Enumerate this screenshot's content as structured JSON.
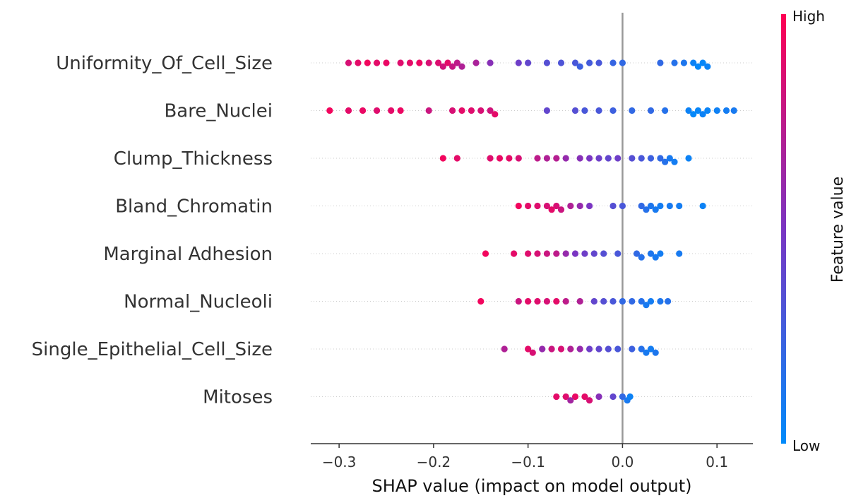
{
  "chart_data": {
    "type": "scatter",
    "subtype": "shap-beeswarm",
    "xlabel": "SHAP value (impact on model output)",
    "xlim": [
      -0.33,
      0.138
    ],
    "xticks": [
      -0.3,
      -0.2,
      -0.1,
      0.0,
      0.1
    ],
    "xtick_labels": [
      "−0.3",
      "−0.2",
      "−0.1",
      "0.0",
      "0.1"
    ],
    "features": [
      "Uniformity_Of_Cell_Size",
      "Bare_Nuclei",
      "Clump_Thickness",
      "Bland_Chromatin",
      "Marginal Adhesion",
      "Normal_Nucleoli",
      "Single_Epithelial_Cell_Size",
      "Mitoses"
    ],
    "colorbar": {
      "label": "Feature value",
      "high_label": "High",
      "low_label": "Low",
      "high_color": "#ff0052",
      "low_color": "#008bfb"
    },
    "series": [
      {
        "values": [
          {
            "x": -0.29,
            "v": 0.85
          },
          {
            "x": -0.28,
            "v": 0.9
          },
          {
            "x": -0.27,
            "v": 0.95
          },
          {
            "x": -0.26,
            "v": 0.9
          },
          {
            "x": -0.25,
            "v": 0.92
          },
          {
            "x": -0.235,
            "v": 0.88
          },
          {
            "x": -0.225,
            "v": 0.9
          },
          {
            "x": -0.215,
            "v": 0.93
          },
          {
            "x": -0.205,
            "v": 0.85
          },
          {
            "x": -0.195,
            "v": 0.87
          },
          {
            "x": -0.19,
            "v": 0.82
          },
          {
            "x": -0.185,
            "v": 0.9
          },
          {
            "x": -0.18,
            "v": 0.78
          },
          {
            "x": -0.175,
            "v": 0.75
          },
          {
            "x": -0.17,
            "v": 0.7
          },
          {
            "x": -0.155,
            "v": 0.68
          },
          {
            "x": -0.14,
            "v": 0.55
          },
          {
            "x": -0.11,
            "v": 0.45
          },
          {
            "x": -0.1,
            "v": 0.4
          },
          {
            "x": -0.08,
            "v": 0.35
          },
          {
            "x": -0.065,
            "v": 0.32
          },
          {
            "x": -0.05,
            "v": 0.3
          },
          {
            "x": -0.045,
            "v": 0.25
          },
          {
            "x": -0.035,
            "v": 0.28
          },
          {
            "x": -0.025,
            "v": 0.3
          },
          {
            "x": -0.01,
            "v": 0.22
          },
          {
            "x": 0.0,
            "v": 0.2
          },
          {
            "x": 0.04,
            "v": 0.2
          },
          {
            "x": 0.055,
            "v": 0.15
          },
          {
            "x": 0.065,
            "v": 0.12
          },
          {
            "x": 0.075,
            "v": 0.05
          },
          {
            "x": 0.08,
            "v": 0.02
          },
          {
            "x": 0.085,
            "v": 0.03
          },
          {
            "x": 0.09,
            "v": 0.05
          }
        ]
      },
      {
        "values": [
          {
            "x": -0.31,
            "v": 0.95
          },
          {
            "x": -0.29,
            "v": 0.9
          },
          {
            "x": -0.275,
            "v": 0.92
          },
          {
            "x": -0.26,
            "v": 0.88
          },
          {
            "x": -0.245,
            "v": 0.9
          },
          {
            "x": -0.235,
            "v": 0.93
          },
          {
            "x": -0.205,
            "v": 0.8
          },
          {
            "x": -0.18,
            "v": 0.85
          },
          {
            "x": -0.17,
            "v": 0.9
          },
          {
            "x": -0.16,
            "v": 0.88
          },
          {
            "x": -0.15,
            "v": 0.85
          },
          {
            "x": -0.14,
            "v": 0.82
          },
          {
            "x": -0.135,
            "v": 0.9
          },
          {
            "x": -0.08,
            "v": 0.4
          },
          {
            "x": -0.05,
            "v": 0.35
          },
          {
            "x": -0.04,
            "v": 0.3
          },
          {
            "x": -0.025,
            "v": 0.3
          },
          {
            "x": -0.01,
            "v": 0.25
          },
          {
            "x": 0.01,
            "v": 0.2
          },
          {
            "x": 0.03,
            "v": 0.2
          },
          {
            "x": 0.045,
            "v": 0.15
          },
          {
            "x": 0.07,
            "v": 0.05
          },
          {
            "x": 0.075,
            "v": 0.02
          },
          {
            "x": 0.08,
            "v": 0.03
          },
          {
            "x": 0.085,
            "v": 0.05
          },
          {
            "x": 0.09,
            "v": 0.04
          },
          {
            "x": 0.1,
            "v": 0.06
          },
          {
            "x": 0.11,
            "v": 0.08
          },
          {
            "x": 0.118,
            "v": 0.1
          }
        ]
      },
      {
        "values": [
          {
            "x": -0.19,
            "v": 0.95
          },
          {
            "x": -0.175,
            "v": 0.9
          },
          {
            "x": -0.14,
            "v": 0.88
          },
          {
            "x": -0.13,
            "v": 0.92
          },
          {
            "x": -0.12,
            "v": 0.9
          },
          {
            "x": -0.11,
            "v": 0.85
          },
          {
            "x": -0.09,
            "v": 0.75
          },
          {
            "x": -0.08,
            "v": 0.7
          },
          {
            "x": -0.07,
            "v": 0.72
          },
          {
            "x": -0.06,
            "v": 0.6
          },
          {
            "x": -0.045,
            "v": 0.55
          },
          {
            "x": -0.035,
            "v": 0.5
          },
          {
            "x": -0.025,
            "v": 0.45
          },
          {
            "x": -0.015,
            "v": 0.4
          },
          {
            "x": -0.005,
            "v": 0.45
          },
          {
            "x": 0.01,
            "v": 0.35
          },
          {
            "x": 0.02,
            "v": 0.3
          },
          {
            "x": 0.03,
            "v": 0.25
          },
          {
            "x": 0.04,
            "v": 0.2
          },
          {
            "x": 0.045,
            "v": 0.15
          },
          {
            "x": 0.05,
            "v": 0.1
          },
          {
            "x": 0.055,
            "v": 0.08
          },
          {
            "x": 0.07,
            "v": 0.05
          }
        ]
      },
      {
        "values": [
          {
            "x": -0.11,
            "v": 0.95
          },
          {
            "x": -0.1,
            "v": 0.9
          },
          {
            "x": -0.09,
            "v": 0.88
          },
          {
            "x": -0.08,
            "v": 0.85
          },
          {
            "x": -0.075,
            "v": 0.9
          },
          {
            "x": -0.07,
            "v": 0.85
          },
          {
            "x": -0.065,
            "v": 0.8
          },
          {
            "x": -0.055,
            "v": 0.7
          },
          {
            "x": -0.045,
            "v": 0.6
          },
          {
            "x": -0.035,
            "v": 0.5
          },
          {
            "x": -0.01,
            "v": 0.35
          },
          {
            "x": 0.0,
            "v": 0.3
          },
          {
            "x": 0.02,
            "v": 0.2
          },
          {
            "x": 0.025,
            "v": 0.15
          },
          {
            "x": 0.03,
            "v": 0.12
          },
          {
            "x": 0.035,
            "v": 0.1
          },
          {
            "x": 0.04,
            "v": 0.08
          },
          {
            "x": 0.05,
            "v": 0.1
          },
          {
            "x": 0.06,
            "v": 0.08
          },
          {
            "x": 0.085,
            "v": 0.05
          }
        ]
      },
      {
        "values": [
          {
            "x": -0.145,
            "v": 0.95
          },
          {
            "x": -0.115,
            "v": 0.9
          },
          {
            "x": -0.1,
            "v": 0.88
          },
          {
            "x": -0.09,
            "v": 0.85
          },
          {
            "x": -0.08,
            "v": 0.8
          },
          {
            "x": -0.07,
            "v": 0.75
          },
          {
            "x": -0.06,
            "v": 0.6
          },
          {
            "x": -0.05,
            "v": 0.5
          },
          {
            "x": -0.04,
            "v": 0.45
          },
          {
            "x": -0.03,
            "v": 0.4
          },
          {
            "x": -0.02,
            "v": 0.35
          },
          {
            "x": -0.005,
            "v": 0.3
          },
          {
            "x": 0.015,
            "v": 0.2
          },
          {
            "x": 0.02,
            "v": 0.15
          },
          {
            "x": 0.03,
            "v": 0.12
          },
          {
            "x": 0.035,
            "v": 0.1
          },
          {
            "x": 0.04,
            "v": 0.08
          },
          {
            "x": 0.06,
            "v": 0.1
          }
        ]
      },
      {
        "values": [
          {
            "x": -0.15,
            "v": 0.95
          },
          {
            "x": -0.11,
            "v": 0.8
          },
          {
            "x": -0.1,
            "v": 0.9
          },
          {
            "x": -0.09,
            "v": 0.88
          },
          {
            "x": -0.08,
            "v": 0.85
          },
          {
            "x": -0.07,
            "v": 0.9
          },
          {
            "x": -0.06,
            "v": 0.75
          },
          {
            "x": -0.045,
            "v": 0.7
          },
          {
            "x": -0.03,
            "v": 0.4
          },
          {
            "x": -0.02,
            "v": 0.35
          },
          {
            "x": -0.01,
            "v": 0.3
          },
          {
            "x": 0.0,
            "v": 0.2
          },
          {
            "x": 0.01,
            "v": 0.2
          },
          {
            "x": 0.02,
            "v": 0.15
          },
          {
            "x": 0.025,
            "v": 0.1
          },
          {
            "x": 0.03,
            "v": 0.08
          },
          {
            "x": 0.04,
            "v": 0.12
          },
          {
            "x": 0.048,
            "v": 0.15
          }
        ]
      },
      {
        "values": [
          {
            "x": -0.125,
            "v": 0.7
          },
          {
            "x": -0.1,
            "v": 0.9
          },
          {
            "x": -0.095,
            "v": 0.85
          },
          {
            "x": -0.085,
            "v": 0.6
          },
          {
            "x": -0.075,
            "v": 0.8
          },
          {
            "x": -0.065,
            "v": 0.85
          },
          {
            "x": -0.055,
            "v": 0.7
          },
          {
            "x": -0.045,
            "v": 0.6
          },
          {
            "x": -0.035,
            "v": 0.45
          },
          {
            "x": -0.025,
            "v": 0.4
          },
          {
            "x": -0.015,
            "v": 0.35
          },
          {
            "x": -0.005,
            "v": 0.3
          },
          {
            "x": 0.01,
            "v": 0.25
          },
          {
            "x": 0.02,
            "v": 0.15
          },
          {
            "x": 0.025,
            "v": 0.1
          },
          {
            "x": 0.03,
            "v": 0.08
          },
          {
            "x": 0.035,
            "v": 0.12
          }
        ]
      },
      {
        "values": [
          {
            "x": -0.07,
            "v": 0.9
          },
          {
            "x": -0.06,
            "v": 0.88
          },
          {
            "x": -0.05,
            "v": 0.92
          },
          {
            "x": -0.04,
            "v": 0.9
          },
          {
            "x": -0.035,
            "v": 0.85
          },
          {
            "x": -0.055,
            "v": 0.65
          },
          {
            "x": -0.025,
            "v": 0.55
          },
          {
            "x": -0.01,
            "v": 0.4
          },
          {
            "x": 0.0,
            "v": 0.2
          },
          {
            "x": 0.005,
            "v": 0.1
          },
          {
            "x": 0.008,
            "v": 0.05
          }
        ]
      }
    ]
  }
}
